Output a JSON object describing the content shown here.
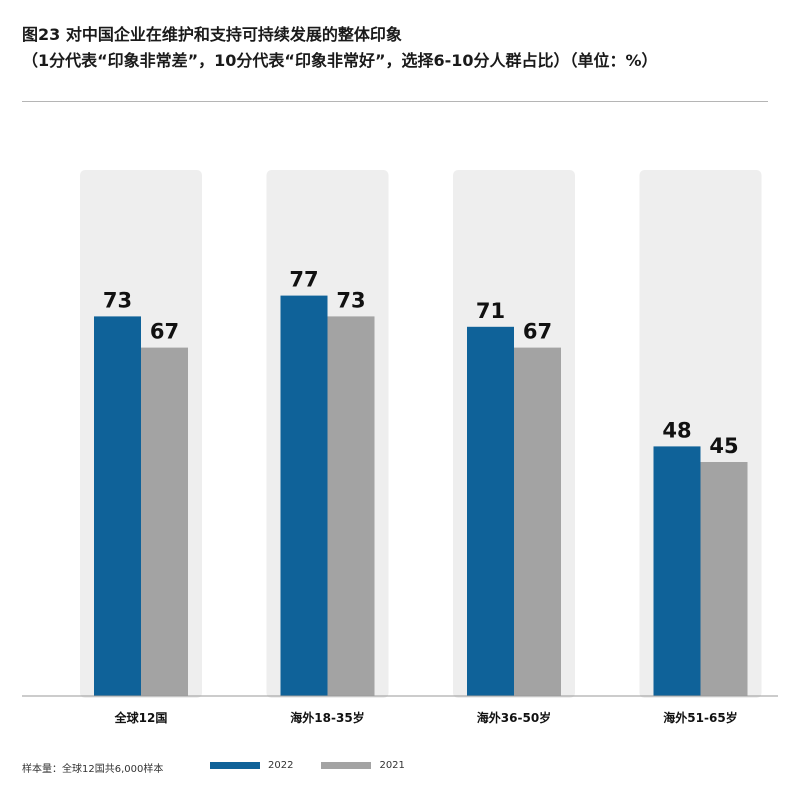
{
  "title": {
    "line1": "图23  对中国企业在维护和支持可持续发展的整体印象",
    "line2": "（1分代表“印象非常差”，10分代表“印象非常好”，选择6-10分人群占比）（单位：%）"
  },
  "footer": {
    "sample_note": "样本量：全球12国共6,000样本"
  },
  "colors": {
    "series_2022": "#0f6299",
    "series_2021": "#a3a3a3",
    "group_background": "#eeeeee",
    "axis": "#999999"
  },
  "chart_data": {
    "type": "bar",
    "categories": [
      "全球12国",
      "海外18-35岁",
      "海外36-50岁",
      "海外51-65岁"
    ],
    "series": [
      {
        "name": "2022",
        "values": [
          73,
          77,
          71,
          48
        ]
      },
      {
        "name": "2021",
        "values": [
          67,
          73,
          67,
          45
        ]
      }
    ],
    "ylim": [
      0,
      100
    ],
    "grid": false,
    "legend_position": "bottom"
  }
}
